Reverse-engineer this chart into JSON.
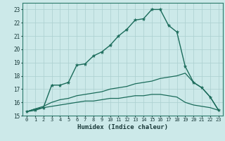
{
  "title": "",
  "xlabel": "Humidex (Indice chaleur)",
  "bg_color": "#cce9e9",
  "line_color": "#1a6b5a",
  "grid_color": "#aacfcf",
  "xlim": [
    -0.5,
    23.5
  ],
  "ylim": [
    15.0,
    23.5
  ],
  "yticks": [
    15,
    16,
    17,
    18,
    19,
    20,
    21,
    22,
    23
  ],
  "xticks": [
    0,
    1,
    2,
    3,
    4,
    5,
    6,
    7,
    8,
    9,
    10,
    11,
    12,
    13,
    14,
    15,
    16,
    17,
    18,
    19,
    20,
    21,
    22,
    23
  ],
  "line1_x": [
    0,
    1,
    2,
    3,
    4,
    5,
    6,
    7,
    8,
    9,
    10,
    11,
    12,
    13,
    14,
    15,
    16,
    17,
    18,
    19,
    20,
    21,
    22,
    23
  ],
  "line1_y": [
    15.3,
    15.4,
    15.6,
    17.3,
    17.3,
    17.5,
    18.8,
    18.9,
    19.5,
    19.8,
    20.3,
    21.0,
    21.5,
    22.2,
    22.3,
    23.0,
    23.0,
    21.8,
    21.3,
    18.7,
    17.5,
    17.1,
    16.4,
    15.4
  ],
  "line2_x": [
    0,
    1,
    2,
    3,
    4,
    5,
    6,
    7,
    8,
    9,
    10,
    11,
    12,
    13,
    14,
    15,
    16,
    17,
    18,
    19,
    20,
    21,
    22,
    23
  ],
  "line2_y": [
    15.3,
    15.5,
    15.7,
    16.0,
    16.2,
    16.3,
    16.5,
    16.6,
    16.7,
    16.8,
    17.0,
    17.1,
    17.2,
    17.4,
    17.5,
    17.6,
    17.8,
    17.9,
    18.0,
    18.2,
    17.5,
    17.1,
    16.4,
    15.4
  ],
  "line3_x": [
    0,
    1,
    2,
    3,
    4,
    5,
    6,
    7,
    8,
    9,
    10,
    11,
    12,
    13,
    14,
    15,
    16,
    17,
    18,
    19,
    20,
    21,
    22,
    23
  ],
  "line3_y": [
    15.3,
    15.5,
    15.6,
    15.7,
    15.8,
    15.9,
    16.0,
    16.1,
    16.1,
    16.2,
    16.3,
    16.3,
    16.4,
    16.5,
    16.5,
    16.6,
    16.6,
    16.5,
    16.4,
    16.0,
    15.8,
    15.7,
    15.6,
    15.4
  ],
  "xlabel_fontsize": 6.5,
  "tick_fontsize": 5.0
}
